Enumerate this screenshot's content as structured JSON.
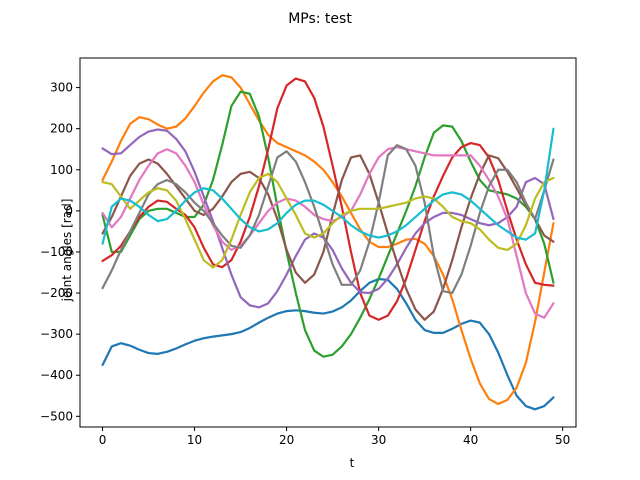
{
  "chart_data": {
    "type": "line",
    "title": "MPs: test",
    "xlabel": "t",
    "ylabel": "joint angles [rad]",
    "xlim": [
      -2.45,
      51.45
    ],
    "ylim": [
      -526,
      372
    ],
    "xticks": [
      0,
      10,
      20,
      30,
      40,
      50
    ],
    "yticks": [
      -500,
      -400,
      -300,
      -200,
      -100,
      0,
      100,
      200,
      300
    ],
    "grid": false,
    "legend": "none",
    "x": [
      0,
      1,
      2,
      3,
      4,
      5,
      6,
      7,
      8,
      9,
      10,
      11,
      12,
      13,
      14,
      15,
      16,
      17,
      18,
      19,
      20,
      21,
      22,
      23,
      24,
      25,
      26,
      27,
      28,
      29,
      30,
      31,
      32,
      33,
      34,
      35,
      36,
      37,
      38,
      39,
      40,
      41,
      42,
      43,
      44,
      45,
      46,
      47,
      48,
      49
    ],
    "series": [
      {
        "color": "#1f77b4",
        "values": [
          -375,
          -330,
          -322,
          -328,
          -338,
          -346,
          -348,
          -343,
          -335,
          -325,
          -316,
          -310,
          -306,
          -303,
          -300,
          -295,
          -285,
          -272,
          -260,
          -250,
          -244,
          -242,
          -244,
          -248,
          -250,
          -245,
          -235,
          -218,
          -195,
          -175,
          -166,
          -168,
          -190,
          -225,
          -265,
          -290,
          -297,
          -297,
          -287,
          -275,
          -267,
          -272,
          -300,
          -345,
          -400,
          -450,
          -475,
          -483,
          -475,
          -454
        ]
      },
      {
        "color": "#ff7f0e",
        "values": [
          75,
          120,
          170,
          212,
          228,
          223,
          210,
          200,
          205,
          225,
          255,
          288,
          315,
          330,
          325,
          300,
          260,
          220,
          185,
          165,
          155,
          145,
          135,
          120,
          100,
          70,
          35,
          -5,
          -45,
          -75,
          -88,
          -88,
          -80,
          -70,
          -68,
          -80,
          -110,
          -155,
          -215,
          -290,
          -360,
          -420,
          -458,
          -470,
          -460,
          -430,
          -370,
          -270,
          -150,
          -30
        ]
      },
      {
        "color": "#2ca02c",
        "values": [
          -10,
          -100,
          -100,
          -60,
          -20,
          0,
          5,
          5,
          -5,
          -15,
          -15,
          15,
          75,
          160,
          255,
          290,
          285,
          230,
          130,
          10,
          -100,
          -200,
          -290,
          -340,
          -355,
          -350,
          -330,
          -300,
          -260,
          -215,
          -165,
          -110,
          -55,
          0,
          60,
          130,
          190,
          208,
          205,
          170,
          120,
          75,
          50,
          45,
          40,
          30,
          10,
          -20,
          -80,
          -175
        ]
      },
      {
        "color": "#d62728",
        "values": [
          -122,
          -108,
          -85,
          -50,
          -15,
          10,
          25,
          22,
          5,
          -10,
          -40,
          -90,
          -130,
          -137,
          -120,
          -75,
          -15,
          60,
          150,
          250,
          305,
          322,
          315,
          275,
          205,
          110,
          10,
          -100,
          -200,
          -255,
          -265,
          -255,
          -220,
          -165,
          -95,
          -25,
          35,
          85,
          130,
          155,
          165,
          160,
          130,
          75,
          0,
          -70,
          -130,
          -175,
          -180,
          -182
        ]
      },
      {
        "color": "#9467bd",
        "values": [
          152,
          138,
          140,
          160,
          180,
          193,
          198,
          195,
          175,
          145,
          95,
          35,
          -25,
          -90,
          -155,
          -210,
          -230,
          -235,
          -225,
          -195,
          -155,
          -110,
          -70,
          -55,
          -65,
          -95,
          -140,
          -175,
          -198,
          -200,
          -190,
          -165,
          -130,
          -90,
          -55,
          -30,
          -15,
          -5,
          -5,
          -10,
          -20,
          -30,
          -35,
          -30,
          -15,
          10,
          70,
          80,
          65,
          -20
        ]
      },
      {
        "color": "#8c564b",
        "values": [
          -55,
          -15,
          35,
          85,
          115,
          125,
          115,
          90,
          60,
          30,
          0,
          -10,
          5,
          35,
          70,
          90,
          95,
          80,
          40,
          -20,
          -95,
          -150,
          -175,
          -155,
          -100,
          -10,
          75,
          130,
          135,
          90,
          20,
          -55,
          -125,
          -190,
          -240,
          -265,
          -245,
          -190,
          -120,
          -40,
          30,
          90,
          135,
          128,
          95,
          55,
          15,
          -20,
          -60,
          -75
        ]
      },
      {
        "color": "#e377c2",
        "values": [
          -5,
          -40,
          -15,
          30,
          75,
          110,
          140,
          150,
          140,
          110,
          70,
          15,
          -35,
          -75,
          -95,
          -85,
          -60,
          -30,
          0,
          20,
          30,
          25,
          10,
          -10,
          -20,
          -25,
          -15,
          0,
          40,
          90,
          130,
          150,
          155,
          150,
          145,
          140,
          135,
          135,
          135,
          135,
          135,
          110,
          75,
          35,
          -20,
          -110,
          -200,
          -250,
          -260,
          -225
        ]
      },
      {
        "color": "#7f7f7f",
        "values": [
          -188,
          -145,
          -95,
          -50,
          -5,
          40,
          65,
          75,
          65,
          45,
          20,
          0,
          -30,
          -60,
          -85,
          -90,
          -60,
          -10,
          60,
          130,
          145,
          120,
          70,
          10,
          -60,
          -130,
          -180,
          -180,
          -145,
          -75,
          20,
          135,
          160,
          150,
          110,
          20,
          -110,
          -195,
          -200,
          -155,
          -85,
          -5,
          60,
          100,
          100,
          70,
          20,
          -20,
          50,
          125
        ]
      },
      {
        "color": "#bcbd22",
        "values": [
          70,
          65,
          35,
          5,
          25,
          45,
          55,
          50,
          25,
          -20,
          -70,
          -120,
          -138,
          -120,
          -70,
          -10,
          45,
          80,
          90,
          70,
          30,
          -10,
          -55,
          -65,
          -55,
          -30,
          -10,
          0,
          5,
          5,
          5,
          10,
          15,
          20,
          30,
          35,
          30,
          10,
          -15,
          -25,
          -30,
          -45,
          -70,
          -90,
          -95,
          -80,
          -35,
          30,
          70,
          80
        ]
      },
      {
        "color": "#17becf",
        "values": [
          -80,
          10,
          30,
          25,
          10,
          -10,
          -25,
          -20,
          0,
          25,
          45,
          55,
          50,
          30,
          5,
          -20,
          -40,
          -50,
          -45,
          -30,
          -5,
          15,
          25,
          25,
          15,
          0,
          -15,
          -35,
          -50,
          -60,
          -65,
          -60,
          -50,
          -35,
          -15,
          5,
          25,
          40,
          45,
          40,
          25,
          5,
          -15,
          -35,
          -50,
          -65,
          -70,
          -55,
          50,
          200
        ]
      }
    ]
  }
}
